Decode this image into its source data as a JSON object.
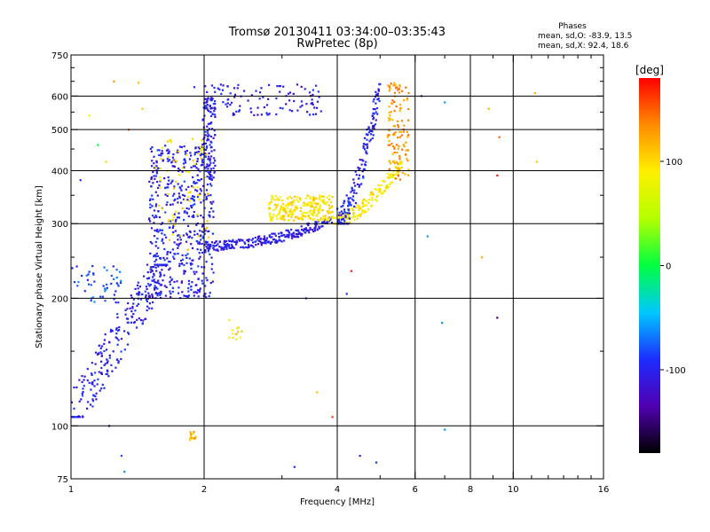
{
  "chart_data": {
    "type": "scatter",
    "title_line1": "Tromsø 20130411 03:34:00–03:35:43",
    "title_line2": "RwPretec (8p)",
    "stats": {
      "heading": "Phases",
      "o_line": "mean, sd,O: -83.9, 13.5",
      "x_line": "mean, sd,X:  92.4, 18.6"
    },
    "xlabel": "Frequency [MHz]",
    "ylabel": "Stationary phase Virtual Height [km]",
    "x_scale": "log",
    "y_scale": "log",
    "xlim": [
      1,
      16
    ],
    "ylim": [
      75,
      750
    ],
    "x_ticks": [
      1,
      2,
      4,
      6,
      8,
      10,
      16
    ],
    "x_minor_ticks": [
      3,
      5,
      7,
      9,
      11,
      12,
      13,
      14,
      15
    ],
    "y_ticks": [
      75,
      100,
      200,
      300,
      400,
      500,
      600,
      750
    ],
    "y_minor_ticks": [
      150,
      250,
      350,
      450,
      550,
      650,
      700
    ],
    "x_gridlines": [
      2,
      4,
      6,
      8,
      10
    ],
    "y_gridlines": [
      100,
      200,
      300,
      400,
      500,
      600
    ],
    "colorbar": {
      "label": "[deg]",
      "range": [
        -180,
        180
      ],
      "ticks": [
        100,
        0,
        -100
      ],
      "colormap": "rainbow",
      "stops": [
        "#000000",
        "#5000b0",
        "#1e2cff",
        "#00c8ff",
        "#00ff40",
        "#b4ff00",
        "#fff000",
        "#ff8c00",
        "#ff0000"
      ]
    },
    "clusters": [
      {
        "name": "o-lower-trace",
        "f": [
          1.0,
          1.65
        ],
        "h": [
          105,
          240
        ],
        "phase": -100,
        "n": 260,
        "shape": "curve"
      },
      {
        "name": "o-spread-mid",
        "f": [
          1.5,
          2.1
        ],
        "h": [
          200,
          460
        ],
        "phase": -100,
        "n": 520,
        "shape": "box"
      },
      {
        "name": "o-spread-yellow",
        "f": [
          1.55,
          2.05
        ],
        "h": [
          260,
          480
        ],
        "phase": 100,
        "n": 70,
        "shape": "box"
      },
      {
        "name": "o-upper-2mhz",
        "f": [
          1.98,
          2.12
        ],
        "h": [
          380,
          600
        ],
        "phase": -100,
        "n": 110,
        "shape": "box"
      },
      {
        "name": "o-f-trace",
        "f": [
          2.0,
          3.9
        ],
        "h": [
          258,
          310
        ],
        "phase": -105,
        "n": 260,
        "shape": "ftrace"
      },
      {
        "name": "x-f-trace",
        "f": [
          2.8,
          3.9
        ],
        "h": [
          305,
          350
        ],
        "phase": 95,
        "n": 240,
        "shape": "box"
      },
      {
        "name": "x-high-branch",
        "f": [
          3.9,
          5.6
        ],
        "h": [
          300,
          420
        ],
        "phase": 90,
        "n": 160,
        "shape": "rise"
      },
      {
        "name": "o-high-branch",
        "f": [
          4.0,
          5.0
        ],
        "h": [
          300,
          640
        ],
        "phase": -100,
        "n": 180,
        "shape": "rise"
      },
      {
        "name": "x-top-branch",
        "f": [
          5.2,
          5.8
        ],
        "h": [
          380,
          650
        ],
        "phase": 130,
        "n": 120,
        "shape": "box"
      },
      {
        "name": "o-upper-trace",
        "f": [
          2.0,
          3.7
        ],
        "h": [
          540,
          640
        ],
        "phase": -105,
        "n": 110,
        "shape": "box"
      },
      {
        "name": "o-left-edge",
        "f": [
          1.0,
          1.3
        ],
        "h": [
          195,
          240
        ],
        "phase": -80,
        "n": 50,
        "shape": "box"
      },
      {
        "name": "x-small-cluster",
        "f": [
          1.85,
          1.92
        ],
        "h": [
          92,
          97
        ],
        "phase": 115,
        "n": 14,
        "shape": "box"
      },
      {
        "name": "x-mid-blob",
        "f": [
          2.25,
          2.45
        ],
        "h": [
          160,
          180
        ],
        "phase": 100,
        "n": 12,
        "shape": "box"
      }
    ],
    "isolated_points": [
      {
        "f": 1.25,
        "h": 650,
        "phase": 130
      },
      {
        "f": 1.42,
        "h": 645,
        "phase": 110
      },
      {
        "f": 1.9,
        "h": 630,
        "phase": -90
      },
      {
        "f": 3.2,
        "h": 80,
        "phase": -90
      },
      {
        "f": 4.5,
        "h": 85,
        "phase": -100
      },
      {
        "f": 4.9,
        "h": 82,
        "phase": -95
      },
      {
        "f": 6.2,
        "h": 600,
        "phase": -100
      },
      {
        "f": 7.0,
        "h": 580,
        "phase": -60
      },
      {
        "f": 8.8,
        "h": 560,
        "phase": 120
      },
      {
        "f": 9.3,
        "h": 480,
        "phase": 150
      },
      {
        "f": 9.2,
        "h": 390,
        "phase": 170
      },
      {
        "f": 11.2,
        "h": 610,
        "phase": 120
      },
      {
        "f": 11.3,
        "h": 420,
        "phase": 110
      },
      {
        "f": 8.5,
        "h": 250,
        "phase": 120
      },
      {
        "f": 9.2,
        "h": 180,
        "phase": -150
      },
      {
        "f": 6.4,
        "h": 280,
        "phase": -60
      },
      {
        "f": 6.9,
        "h": 175,
        "phase": -60
      },
      {
        "f": 7.0,
        "h": 98,
        "phase": -60
      },
      {
        "f": 4.3,
        "h": 232,
        "phase": 170
      },
      {
        "f": 4.2,
        "h": 205,
        "phase": -90
      },
      {
        "f": 3.4,
        "h": 200,
        "phase": -90
      },
      {
        "f": 3.6,
        "h": 120,
        "phase": 110
      },
      {
        "f": 3.9,
        "h": 105,
        "phase": 160
      },
      {
        "f": 1.22,
        "h": 100,
        "phase": -150
      },
      {
        "f": 1.3,
        "h": 85,
        "phase": -80
      },
      {
        "f": 1.32,
        "h": 78,
        "phase": -60
      },
      {
        "f": 1.15,
        "h": 460,
        "phase": 0
      },
      {
        "f": 1.1,
        "h": 540,
        "phase": 80
      },
      {
        "f": 1.2,
        "h": 420,
        "phase": 100
      },
      {
        "f": 1.05,
        "h": 380,
        "phase": -90
      },
      {
        "f": 1.35,
        "h": 500,
        "phase": 150
      },
      {
        "f": 1.45,
        "h": 560,
        "phase": 110
      },
      {
        "f": 5.8,
        "h": 610,
        "phase": 140
      }
    ]
  }
}
